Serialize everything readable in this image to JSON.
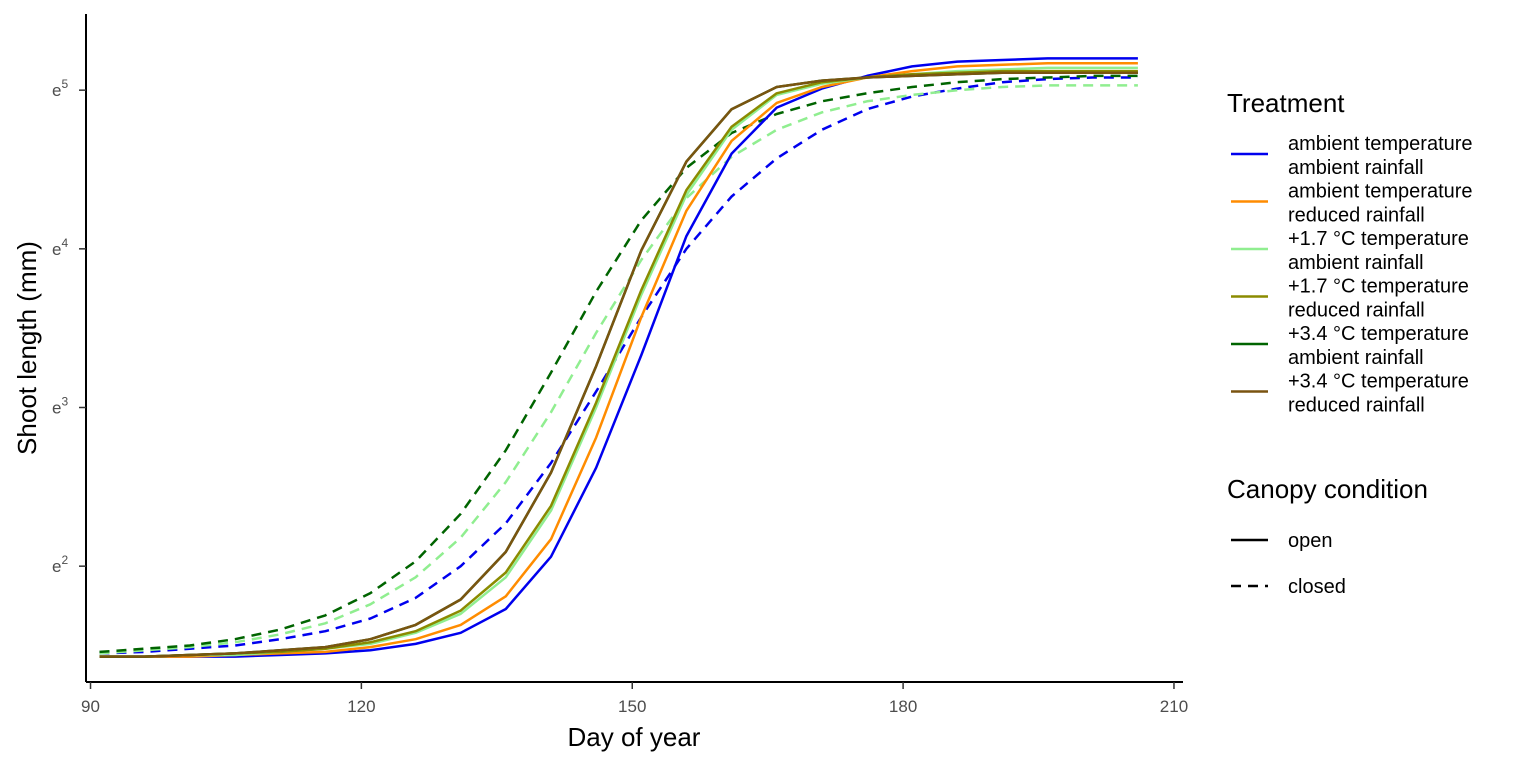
{
  "chart_data": {
    "type": "line",
    "title": "",
    "xlabel": "Day of year",
    "ylabel": "Shoot length (mm)",
    "xlim": [
      89.5,
      211
    ],
    "ylim": [
      1.27,
      5.48
    ],
    "y_scale": "log",
    "grid": false,
    "x_ticks": [
      {
        "value": 90,
        "label": "90"
      },
      {
        "value": 120,
        "label": "120"
      },
      {
        "value": 150,
        "label": "150"
      },
      {
        "value": 180,
        "label": "180"
      },
      {
        "value": 210,
        "label": "210"
      }
    ],
    "y_ticks": [
      {
        "value": 2,
        "base": "e",
        "exp": "2"
      },
      {
        "value": 3,
        "base": "e",
        "exp": "3"
      },
      {
        "value": 4,
        "base": "e",
        "exp": "4"
      },
      {
        "value": 5,
        "base": "e",
        "exp": "5"
      }
    ],
    "x": [
      91,
      96,
      101,
      106,
      111,
      116,
      121,
      126,
      131,
      136,
      141,
      146,
      151,
      156,
      161,
      166,
      171,
      176,
      181,
      186,
      191,
      196,
      201,
      206
    ],
    "series": [
      {
        "treatment": "ambient temperature ambient rainfall",
        "canopy": "open",
        "color": "#0000ee",
        "dash": "solid",
        "values": [
          1.43,
          1.43,
          1.43,
          1.43,
          1.44,
          1.45,
          1.47,
          1.51,
          1.58,
          1.73,
          2.06,
          2.62,
          3.33,
          4.08,
          4.6,
          4.89,
          5.01,
          5.09,
          5.15,
          5.18,
          5.19,
          5.2,
          5.2,
          5.2
        ]
      },
      {
        "treatment": "ambient temperature reduced rainfall",
        "canopy": "open",
        "color": "#ff8c00",
        "dash": "solid",
        "values": [
          1.43,
          1.43,
          1.43,
          1.44,
          1.45,
          1.46,
          1.49,
          1.54,
          1.63,
          1.81,
          2.17,
          2.81,
          3.57,
          4.24,
          4.68,
          4.92,
          5.02,
          5.08,
          5.12,
          5.15,
          5.16,
          5.17,
          5.17,
          5.17
        ]
      },
      {
        "treatment": "+1.7 °C temperature ambient rainfall",
        "canopy": "open",
        "color": "#90ee90",
        "dash": "solid",
        "values": [
          1.43,
          1.43,
          1.44,
          1.44,
          1.46,
          1.48,
          1.51,
          1.58,
          1.7,
          1.93,
          2.35,
          3.0,
          3.71,
          4.34,
          4.75,
          4.97,
          5.04,
          5.08,
          5.1,
          5.12,
          5.13,
          5.14,
          5.14,
          5.14
        ]
      },
      {
        "treatment": "+1.7 °C temperature reduced rainfall",
        "canopy": "open",
        "color": "#8b8b00",
        "dash": "solid",
        "values": [
          1.43,
          1.43,
          1.44,
          1.45,
          1.46,
          1.48,
          1.52,
          1.59,
          1.72,
          1.96,
          2.38,
          3.03,
          3.74,
          4.37,
          4.77,
          4.98,
          5.05,
          5.08,
          5.1,
          5.11,
          5.12,
          5.12,
          5.12,
          5.12
        ]
      },
      {
        "treatment": "+3.4 °C temperature ambient rainfall",
        "canopy": "open",
        "color": "#006400",
        "dash": "solid",
        "values": [
          1.43,
          1.43,
          1.44,
          1.45,
          1.47,
          1.49,
          1.54,
          1.63,
          1.79,
          2.09,
          2.59,
          3.26,
          3.99,
          4.55,
          4.88,
          5.02,
          5.06,
          5.08,
          5.09,
          5.1,
          5.11,
          5.11,
          5.11,
          5.11
        ]
      },
      {
        "treatment": "+3.4 °C temperature reduced rainfall",
        "canopy": "open",
        "color": "#7a5410",
        "dash": "solid",
        "values": [
          1.43,
          1.43,
          1.44,
          1.45,
          1.47,
          1.49,
          1.54,
          1.63,
          1.79,
          2.09,
          2.59,
          3.26,
          3.99,
          4.55,
          4.88,
          5.02,
          5.06,
          5.08,
          5.09,
          5.1,
          5.11,
          5.11,
          5.11,
          5.11
        ]
      },
      {
        "treatment": "ambient temperature ambient rainfall",
        "canopy": "closed",
        "color": "#0000ee",
        "dash": "dashed",
        "values": [
          1.45,
          1.46,
          1.48,
          1.5,
          1.54,
          1.59,
          1.67,
          1.8,
          2.0,
          2.27,
          2.65,
          3.1,
          3.57,
          4.0,
          4.33,
          4.57,
          4.75,
          4.88,
          4.96,
          5.01,
          5.05,
          5.07,
          5.08,
          5.08
        ]
      },
      {
        "treatment": "+1.7 °C temperature ambient rainfall",
        "canopy": "closed",
        "color": "#90ee90",
        "dash": "dashed",
        "values": [
          1.45,
          1.47,
          1.49,
          1.52,
          1.57,
          1.64,
          1.76,
          1.93,
          2.18,
          2.53,
          2.97,
          3.47,
          3.93,
          4.32,
          4.58,
          4.75,
          4.86,
          4.93,
          4.97,
          5.0,
          5.02,
          5.03,
          5.03,
          5.03
        ]
      },
      {
        "treatment": "+3.4 °C temperature ambient rainfall",
        "canopy": "closed",
        "color": "#006400",
        "dash": "dashed",
        "values": [
          1.46,
          1.48,
          1.5,
          1.54,
          1.6,
          1.69,
          1.83,
          2.03,
          2.33,
          2.73,
          3.22,
          3.73,
          4.18,
          4.51,
          4.73,
          4.85,
          4.93,
          4.98,
          5.02,
          5.05,
          5.07,
          5.08,
          5.09,
          5.09
        ]
      }
    ],
    "legend": {
      "position": "right",
      "treatment": {
        "title": "Treatment",
        "items": [
          {
            "line1": "ambient temperature",
            "line2": "ambient rainfall",
            "color": "#0000ee"
          },
          {
            "line1": "ambient temperature",
            "line2": "reduced rainfall",
            "color": "#ff8c00"
          },
          {
            "line1": "+1.7 °C temperature",
            "line2": "ambient rainfall",
            "color": "#90ee90"
          },
          {
            "line1": "+1.7 °C temperature",
            "line2": "reduced rainfall",
            "color": "#8b8b00"
          },
          {
            "line1": "+3.4 °C temperature",
            "line2": "ambient rainfall",
            "color": "#006400"
          },
          {
            "line1": "+3.4 °C temperature",
            "line2": "reduced rainfall",
            "color": "#7a5410"
          }
        ]
      },
      "canopy": {
        "title": "Canopy condition",
        "items": [
          {
            "label": "open",
            "dash": "solid"
          },
          {
            "label": "closed",
            "dash": "dashed"
          }
        ]
      }
    }
  }
}
